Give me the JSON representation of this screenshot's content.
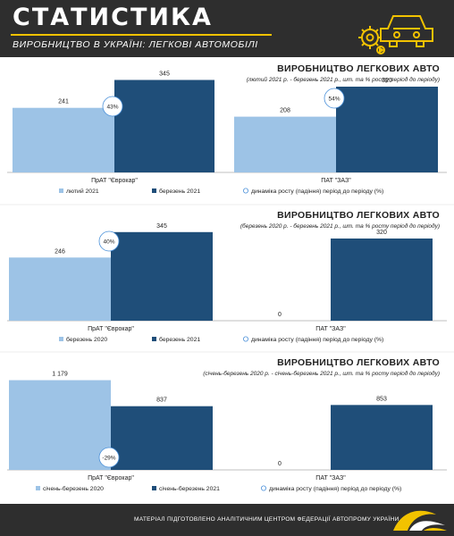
{
  "header": {
    "title": "СТАТИСТИКА",
    "subtitle": "ВИРОБНИЦТВО В УКРАЇНІ: ЛЕГКОВІ АВТОМОБІЛІ"
  },
  "footer": {
    "text": "МАТЕРІАЛ ПІДГОТОВЛЕНО АНАЛІТИЧНИМ ЦЕНТРОМ ФЕДЕРАЦІЇ АВТОПРОМУ УКРАЇНИ"
  },
  "colors": {
    "light": "#9dc3e6",
    "dark": "#1f4e79",
    "accent": "#f2c200",
    "header": "#2e2e2e"
  },
  "chart_data": [
    {
      "type": "bar",
      "title": "ВИРОБНИЦТВО ЛЕГКОВИХ АВТО",
      "subtitle": "(лютий 2021 р. - березень 2021 р., шт. та % росту період до періоду)",
      "categories": [
        "ПрАТ \"Єврокар\"",
        "ПАТ \"ЗАЗ\""
      ],
      "series": [
        {
          "name": "лютий 2021",
          "values": [
            241,
            208
          ]
        },
        {
          "name": "березень 2021",
          "values": [
            345,
            320
          ]
        }
      ],
      "growth": [
        "43%",
        "54%"
      ],
      "growth_legend": "динаміка росту (падіння) період до періоду (%)",
      "ylim": [
        0,
        400
      ]
    },
    {
      "type": "bar",
      "title": "ВИРОБНИЦТВО ЛЕГКОВИХ АВТО",
      "subtitle": "(березень 2020 р. - березень 2021 р., шт. та % росту період до періоду)",
      "categories": [
        "ПрАТ \"Єврокар\"",
        "ПАТ \"ЗАЗ\""
      ],
      "series": [
        {
          "name": "березень 2020",
          "values": [
            246,
            0
          ]
        },
        {
          "name": "березень 2021",
          "values": [
            345,
            320
          ]
        }
      ],
      "growth": [
        "40%",
        ""
      ],
      "growth_legend": "динаміка росту (падіння) період до періоду (%)",
      "ylim": [
        0,
        400
      ]
    },
    {
      "type": "bar",
      "title": "ВИРОБНИЦТВО ЛЕГКОВИХ АВТО",
      "subtitle": "(січень-березень 2020 р. - січень-березень 2021 р., шт. та % росту період до періоду)",
      "categories": [
        "ПрАТ \"Єврокар\"",
        "ПАТ \"ЗАЗ\""
      ],
      "series": [
        {
          "name": "січень-березень 2020",
          "values": [
            1179,
            0
          ],
          "labels": [
            "1 179",
            "0"
          ]
        },
        {
          "name": "січень-березень 2021",
          "values": [
            837,
            853
          ],
          "labels": [
            "837",
            "853"
          ]
        }
      ],
      "growth": [
        "-29%",
        ""
      ],
      "growth_legend": "динаміка росту (падіння) період до періоду (%)",
      "ylim": [
        0,
        1350
      ]
    }
  ]
}
